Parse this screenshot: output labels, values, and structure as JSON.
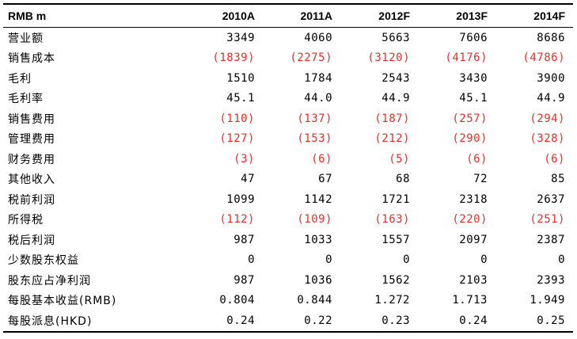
{
  "table": {
    "header": {
      "label": "RMB m",
      "years": [
        "2010A",
        "2011A",
        "2012F",
        "2013F",
        "2014F"
      ]
    },
    "rows": [
      {
        "label": "营业额",
        "values": [
          "3349",
          "4060",
          "5663",
          "7606",
          "8686"
        ]
      },
      {
        "label": "销售成本",
        "values": [
          "(1839)",
          "(2275)",
          "(3120)",
          "(4176)",
          "(4786)"
        ]
      },
      {
        "label": "毛利",
        "values": [
          "1510",
          "1784",
          "2543",
          "3430",
          "3900"
        ]
      },
      {
        "label": "毛利率",
        "values": [
          "45.1",
          "44.0",
          "44.9",
          "45.1",
          "44.9"
        ]
      },
      {
        "label": "销售费用",
        "values": [
          "(110)",
          "(137)",
          "(187)",
          "(257)",
          "(294)"
        ]
      },
      {
        "label": "管理费用",
        "values": [
          "(127)",
          "(153)",
          "(212)",
          "(290)",
          "(328)"
        ]
      },
      {
        "label": "财务费用",
        "values": [
          "(3)",
          "(6)",
          "(5)",
          "(6)",
          "(6)"
        ]
      },
      {
        "label": "其他收入",
        "values": [
          "47",
          "67",
          "68",
          "72",
          "85"
        ]
      },
      {
        "label": "税前利润",
        "values": [
          "1099",
          "1142",
          "1721",
          "2318",
          "2637"
        ]
      },
      {
        "label": "所得税",
        "values": [
          "(112)",
          "(109)",
          "(163)",
          "(220)",
          "(251)"
        ]
      },
      {
        "label": "税后利润",
        "values": [
          "987",
          "1033",
          "1557",
          "2097",
          "2387"
        ]
      },
      {
        "label": "少数股东权益",
        "values": [
          "0",
          "0",
          "0",
          "0",
          "0"
        ]
      },
      {
        "label": "股东应占净利润",
        "values": [
          "987",
          "1036",
          "1562",
          "2103",
          "2393"
        ]
      },
      {
        "label": "每股基本收益(RMB)",
        "values": [
          "0.804",
          "0.844",
          "1.272",
          "1.713",
          "1.949"
        ]
      },
      {
        "label": "每股派息(HKD)",
        "values": [
          "0.24",
          "0.22",
          "0.23",
          "0.24",
          "0.25"
        ]
      }
    ]
  },
  "colors": {
    "negative": "#e0302c",
    "text": "#000000"
  }
}
